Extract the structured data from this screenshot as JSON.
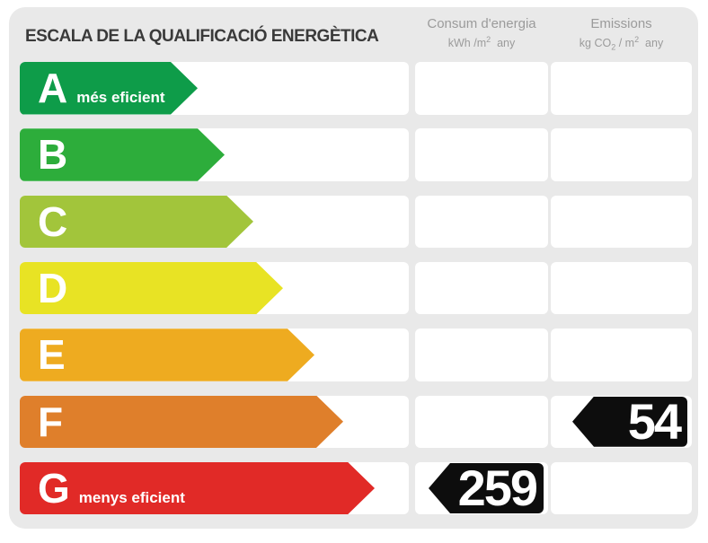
{
  "title": "ESCALA DE LA QUALIFICACIÓ ENERGÈTICA",
  "columns": {
    "consum": {
      "label": "Consum d'energia",
      "unit_a": "kWh /m",
      "unit_sup": "2",
      "unit_b": "  any"
    },
    "emissions": {
      "label": "Emissions",
      "unit_a": "kg CO",
      "unit_sub": "2",
      "unit_b": " / m",
      "unit_sup": "2",
      "unit_c": "  any"
    }
  },
  "rows": [
    {
      "grade": "A",
      "note": "més eficient",
      "color": "#0e9c49",
      "arrow_width": 198,
      "consum": null,
      "emissions": null
    },
    {
      "grade": "B",
      "note": null,
      "color": "#2dad3b",
      "arrow_width": 228,
      "consum": null,
      "emissions": null
    },
    {
      "grade": "C",
      "note": null,
      "color": "#a2c53b",
      "arrow_width": 260,
      "consum": null,
      "emissions": null
    },
    {
      "grade": "D",
      "note": null,
      "color": "#e8e324",
      "arrow_width": 293,
      "consum": null,
      "emissions": null
    },
    {
      "grade": "E",
      "note": null,
      "color": "#eeab20",
      "arrow_width": 328,
      "consum": null,
      "emissions": null
    },
    {
      "grade": "F",
      "note": null,
      "color": "#df7f2b",
      "arrow_width": 360,
      "consum": null,
      "emissions": 54
    },
    {
      "grade": "G",
      "note": "menys eficient",
      "color": "#e12a27",
      "arrow_width": 395,
      "consum": 259,
      "emissions": null
    }
  ],
  "colors": {
    "panel_background": "#e9e9e9",
    "cell_background": "#ffffff",
    "value_arrow_background": "#0d0d0d",
    "header_text": "#9b9b9b",
    "title_text": "#3a3a3a"
  },
  "chart_data": {
    "type": "bar",
    "title": "ESCALA DE LA QUALIFICACIÓ ENERGÈTICA",
    "categories": [
      "A",
      "B",
      "C",
      "D",
      "E",
      "F",
      "G"
    ],
    "category_notes": {
      "A": "més eficient",
      "G": "menys eficient"
    },
    "bar_colors": [
      "#0e9c49",
      "#2dad3b",
      "#a2c53b",
      "#e8e324",
      "#eeab20",
      "#df7f2b",
      "#e12a27"
    ],
    "series": [
      {
        "name": "Consum d'energia (kWh/m2 any)",
        "values": [
          null,
          null,
          null,
          null,
          null,
          null,
          259
        ]
      },
      {
        "name": "Emissions (kg CO2/m2 any)",
        "values": [
          null,
          null,
          null,
          null,
          null,
          54,
          null
        ]
      }
    ],
    "legend_position": "top",
    "grid": false
  }
}
